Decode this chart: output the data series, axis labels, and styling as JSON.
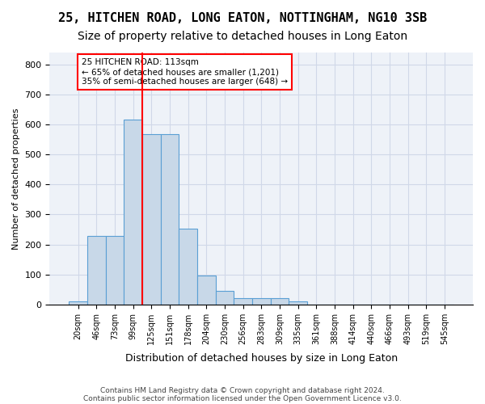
{
  "title1": "25, HITCHEN ROAD, LONG EATON, NOTTINGHAM, NG10 3SB",
  "title2": "Size of property relative to detached houses in Long Eaton",
  "xlabel": "Distribution of detached houses by size in Long Eaton",
  "ylabel": "Number of detached properties",
  "footer1": "Contains HM Land Registry data © Crown copyright and database right 2024.",
  "footer2": "Contains public sector information licensed under the Open Government Licence v3.0.",
  "bin_labels": [
    "20sqm",
    "46sqm",
    "73sqm",
    "99sqm",
    "125sqm",
    "151sqm",
    "178sqm",
    "204sqm",
    "230sqm",
    "256sqm",
    "283sqm",
    "309sqm",
    "335sqm",
    "361sqm",
    "388sqm",
    "414sqm",
    "440sqm",
    "466sqm",
    "493sqm",
    "519sqm",
    "545sqm"
  ],
  "bar_values": [
    10,
    228,
    228,
    617,
    567,
    567,
    253,
    96,
    44,
    20,
    20,
    20,
    9,
    0,
    0,
    0,
    0,
    0,
    0,
    0,
    0
  ],
  "bar_color": "#c8d8e8",
  "bar_edge_color": "#5a9fd4",
  "grid_color": "#d0d8e8",
  "bg_color": "#eef2f8",
  "vline_color": "red",
  "annotation_text": "25 HITCHEN ROAD: 113sqm\n← 65% of detached houses are smaller (1,201)\n35% of semi-detached houses are larger (648) →",
  "annotation_box_color": "white",
  "annotation_box_edge": "red",
  "ylim": [
    0,
    840
  ],
  "yticks": [
    0,
    100,
    200,
    300,
    400,
    500,
    600,
    700,
    800
  ],
  "title1_fontsize": 11,
  "title2_fontsize": 10,
  "vline_pos": 3.5
}
